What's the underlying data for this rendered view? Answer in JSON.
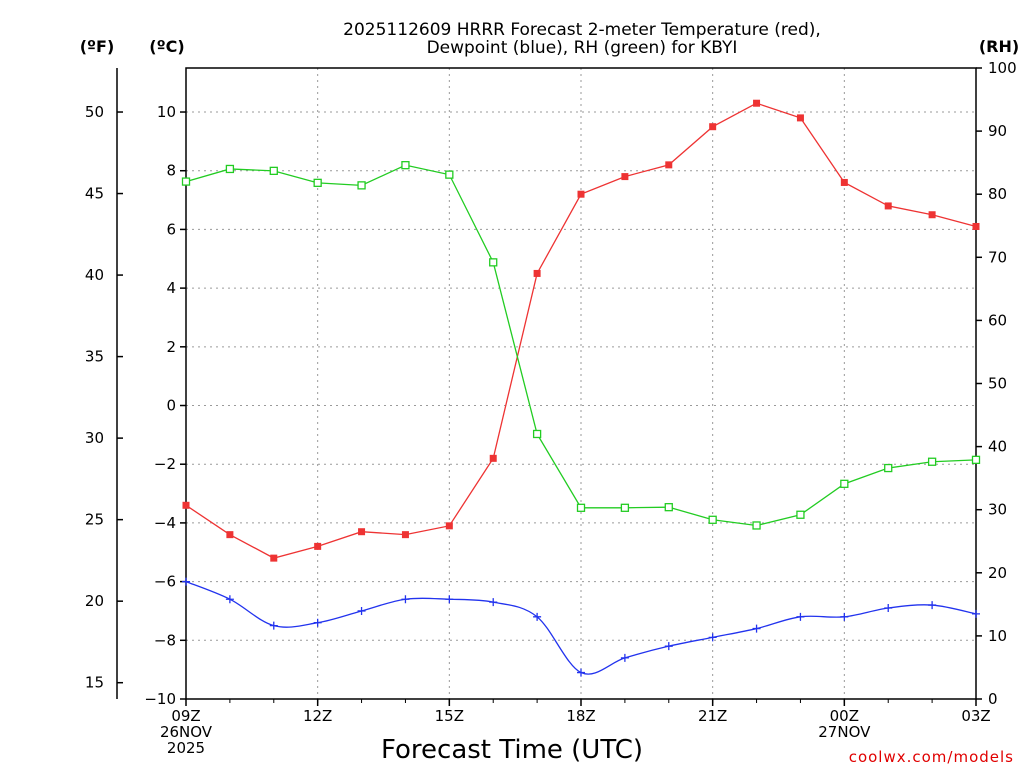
{
  "chart_data": {
    "type": "line",
    "title_lines": [
      "2025112609 HRRR Forecast 2-meter Temperature (red),",
      "Dewpoint (blue), RH (green) for KBYI"
    ],
    "axis_units": {
      "fahrenheit": "(ºF)",
      "celsius": "(ºC)",
      "rh": "(RH)"
    },
    "xlabel": "Forecast Time (UTC)",
    "credit": "coolwx.com/models",
    "x_hours": [
      0,
      1,
      2,
      3,
      4,
      5,
      6,
      7,
      8,
      9,
      10,
      11,
      12,
      13,
      14,
      15,
      16,
      17,
      18
    ],
    "x_ticks": [
      {
        "hour": 0,
        "lines": [
          "09Z",
          "26NOV",
          "2025"
        ]
      },
      {
        "hour": 3,
        "lines": [
          "12Z"
        ]
      },
      {
        "hour": 6,
        "lines": [
          "15Z"
        ]
      },
      {
        "hour": 9,
        "lines": [
          "18Z"
        ]
      },
      {
        "hour": 12,
        "lines": [
          "21Z"
        ]
      },
      {
        "hour": 15,
        "lines": [
          "00Z",
          "27NOV"
        ]
      },
      {
        "hour": 18,
        "lines": [
          "03Z"
        ]
      }
    ],
    "xlim": [
      0,
      18
    ],
    "celsius_ylim": [
      -10,
      11.5
    ],
    "celsius_ticks": [
      "10",
      "8",
      "6",
      "4",
      "2",
      "0",
      "−2",
      "−4",
      "−6",
      "−8",
      "−10"
    ],
    "fahrenheit_ticks": [
      "50",
      "45",
      "40",
      "35",
      "30",
      "25",
      "20",
      "15"
    ],
    "rh_ylim": [
      0,
      100
    ],
    "rh_ticks": [
      "100",
      "90",
      "80",
      "70",
      "60",
      "50",
      "40",
      "30",
      "20",
      "10",
      "0"
    ],
    "grid": true,
    "series": [
      {
        "name": "2-meter Temperature (red)",
        "axis": "celsius",
        "color": "#ee3333",
        "marker": "filled-square",
        "values": [
          -3.4,
          -4.4,
          -5.2,
          -4.8,
          -4.3,
          -4.4,
          -4.1,
          -1.8,
          4.5,
          7.2,
          7.8,
          8.2,
          9.5,
          10.3,
          9.8,
          7.6,
          6.8,
          6.5,
          6.1
        ]
      },
      {
        "name": "Dewpoint (blue)",
        "axis": "celsius",
        "color": "#2233ee",
        "marker": "plus",
        "values": [
          -6.0,
          -6.6,
          -7.5,
          -7.4,
          -7.0,
          -6.6,
          -6.6,
          -6.7,
          -7.2,
          -9.1,
          -8.6,
          -8.2,
          -7.9,
          -7.6,
          -7.2,
          -7.2,
          -6.9,
          -6.8,
          -7.1
        ]
      },
      {
        "name": "RH (green)",
        "axis": "rh",
        "color": "#22cc22",
        "marker": "open-square",
        "values": [
          82.0,
          84.0,
          83.7,
          81.8,
          81.4,
          84.6,
          83.1,
          69.2,
          42.0,
          30.3,
          30.3,
          30.4,
          28.4,
          27.5,
          29.2,
          34.1,
          36.6,
          37.6,
          37.9
        ]
      }
    ]
  }
}
